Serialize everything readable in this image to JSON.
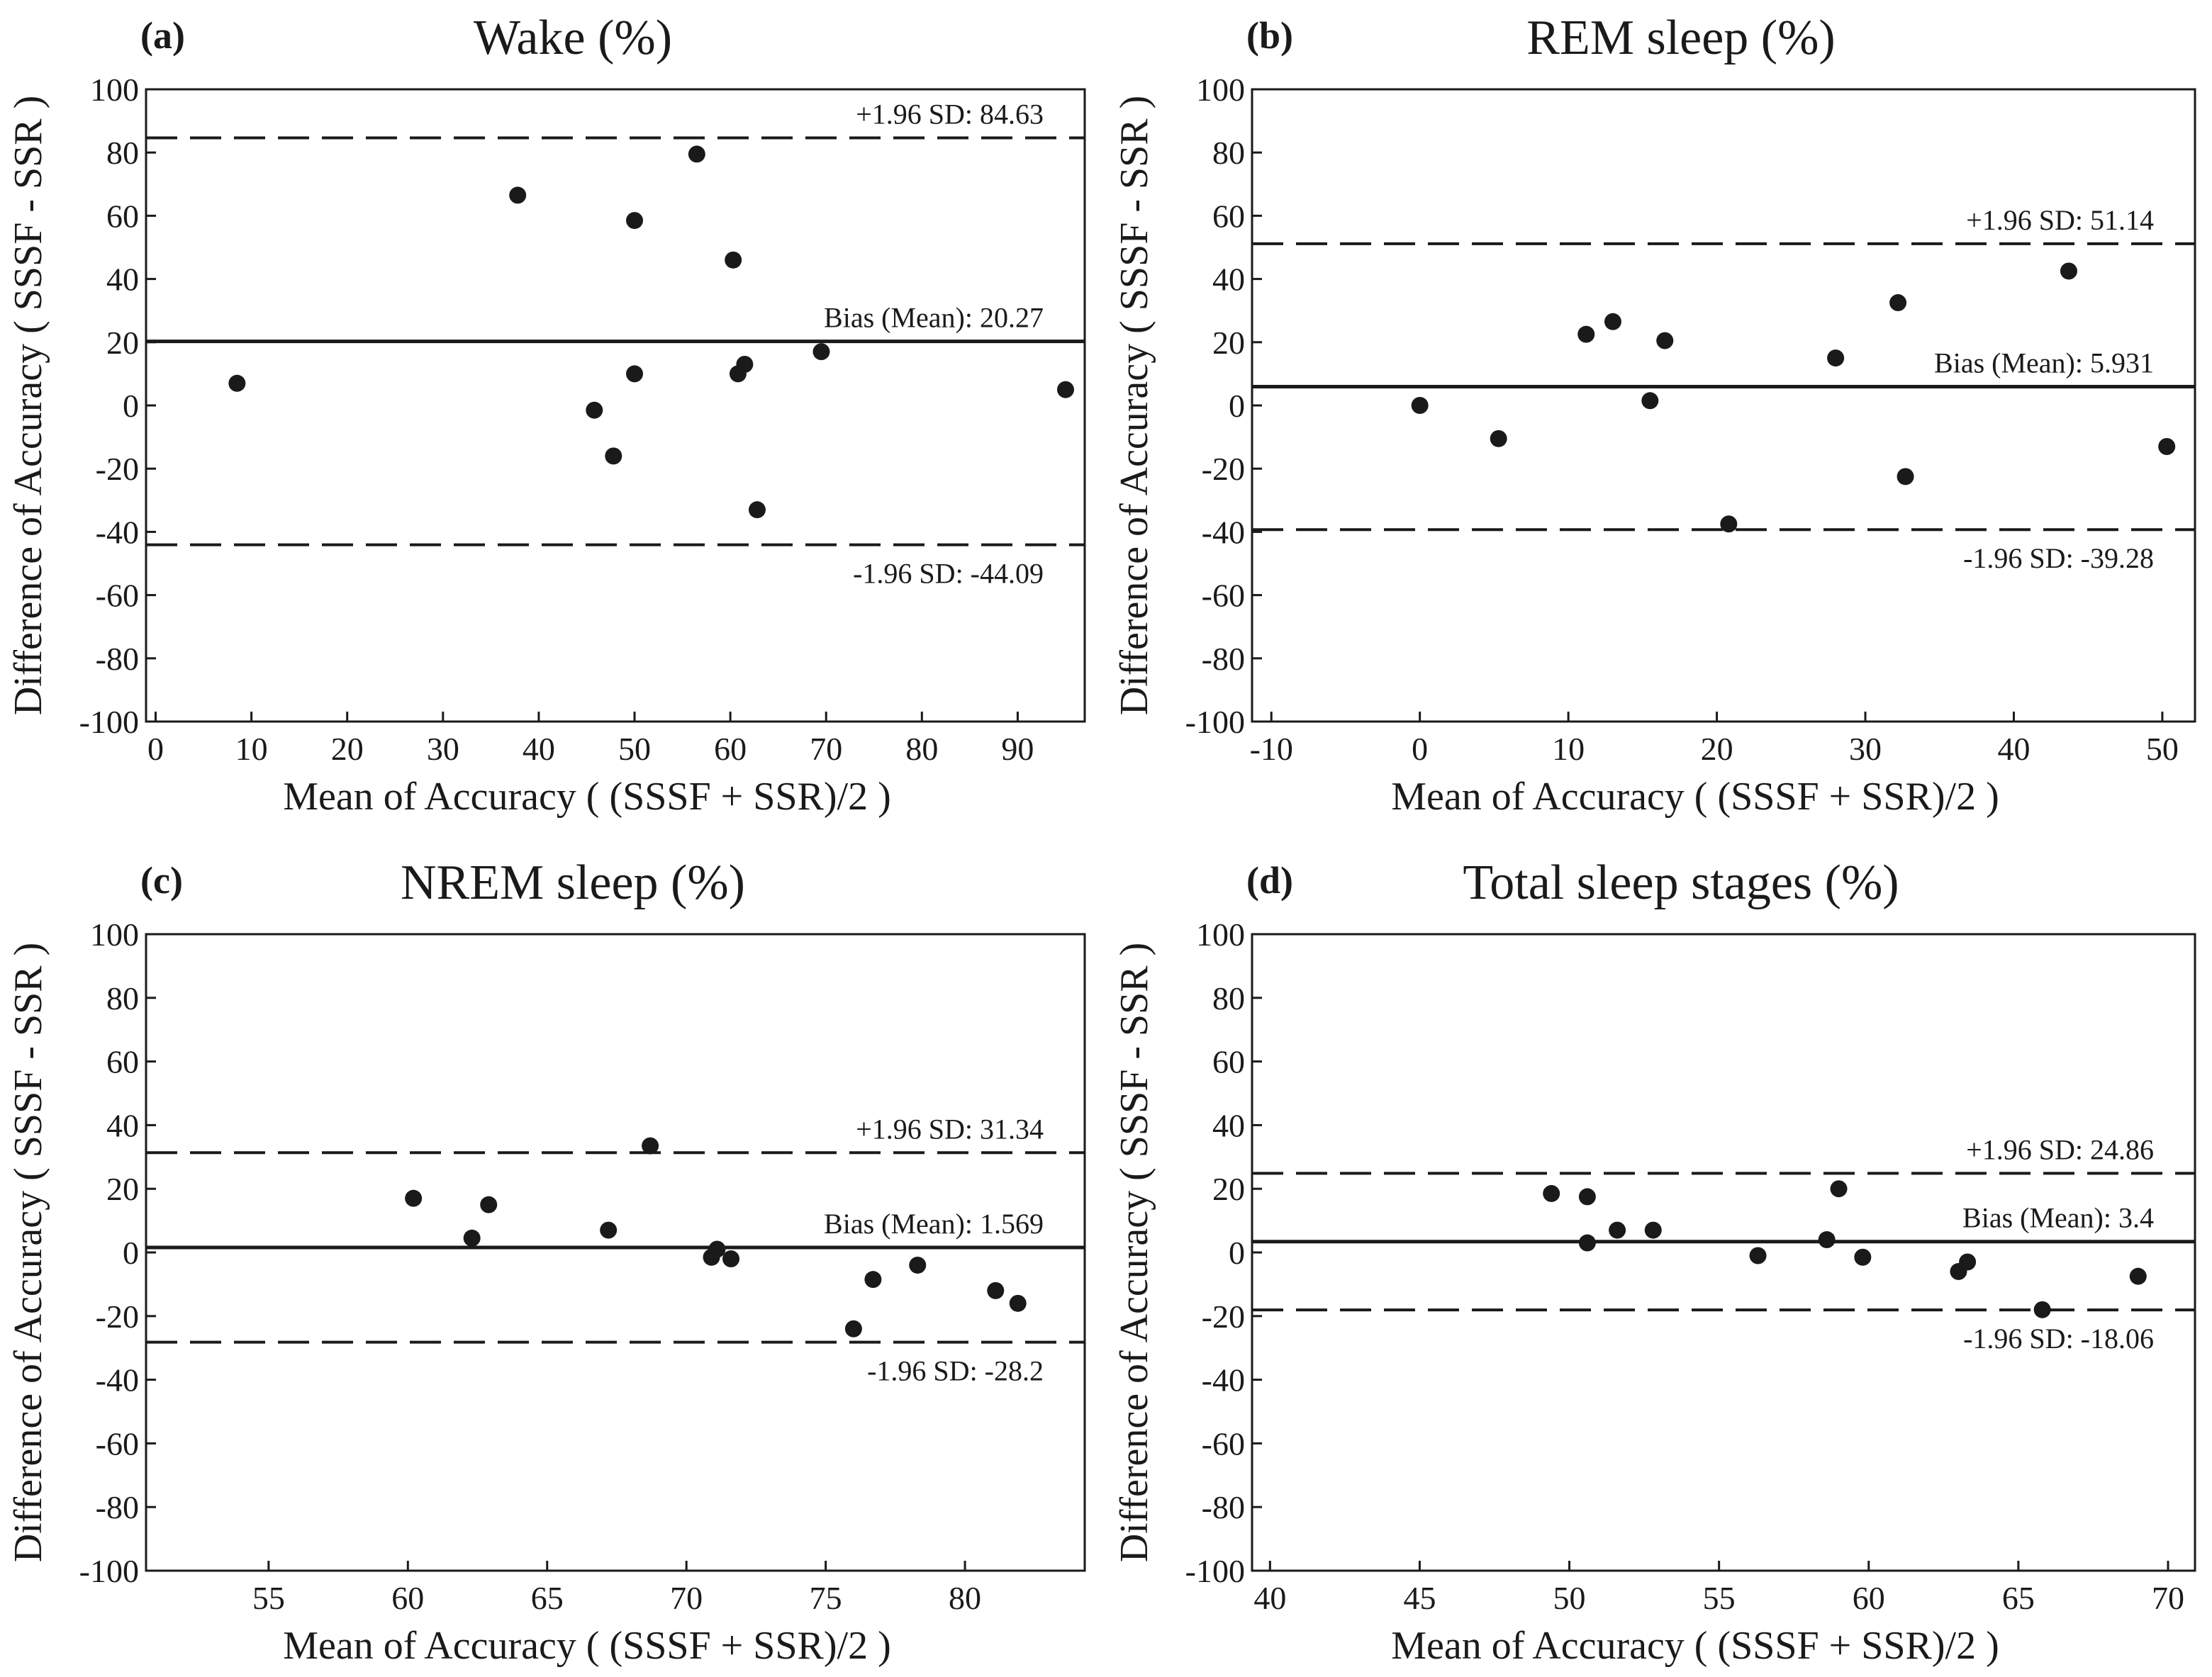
{
  "chart_data": [
    {
      "type": "scatter",
      "panel_label": "(a)",
      "title": "Wake (%)",
      "xlabel": "Mean of Accuracy ( (SSSF + SSR)/2 )",
      "ylabel": "Difference of Accuracy ( SSSF - SSR )",
      "xlim": [
        -1,
        97
      ],
      "ylim": [
        -100,
        100
      ],
      "xticks": [
        0,
        10,
        20,
        30,
        40,
        50,
        60,
        70,
        80,
        90
      ],
      "yticks": [
        100,
        80,
        60,
        40,
        20,
        0,
        -20,
        -40,
        -60,
        -80,
        -100
      ],
      "grid": false,
      "points": [
        {
          "x": 8.5,
          "y": 7
        },
        {
          "x": 37.8,
          "y": 66.5
        },
        {
          "x": 45.8,
          "y": -1.5
        },
        {
          "x": 47.8,
          "y": -16
        },
        {
          "x": 50,
          "y": 58.5
        },
        {
          "x": 50,
          "y": 10
        },
        {
          "x": 56.5,
          "y": 79.5
        },
        {
          "x": 60.3,
          "y": 46
        },
        {
          "x": 60.8,
          "y": 10
        },
        {
          "x": 61.5,
          "y": 13
        },
        {
          "x": 62.8,
          "y": -33
        },
        {
          "x": 69.5,
          "y": 17
        },
        {
          "x": 95,
          "y": 5
        }
      ],
      "lines": [
        {
          "name": "upper",
          "value": 84.63,
          "style": "dashed",
          "label": "+1.96 SD: 84.63",
          "label_side": "above"
        },
        {
          "name": "bias",
          "value": 20.27,
          "style": "solid",
          "label": "Bias (Mean): 20.27",
          "label_side": "above"
        },
        {
          "name": "lower",
          "value": -44.09,
          "style": "dashed",
          "label": "-1.96 SD: -44.09",
          "label_side": "below"
        }
      ]
    },
    {
      "type": "scatter",
      "panel_label": "(b)",
      "title": "REM sleep (%)",
      "xlabel": "Mean of Accuracy ( (SSSF + SSR)/2 )",
      "ylabel": "Difference of Accuracy ( SSSF - SSR )",
      "xlim": [
        -11.3,
        52.2
      ],
      "ylim": [
        -100,
        100
      ],
      "xticks": [
        -10,
        0,
        10,
        20,
        30,
        40,
        50
      ],
      "yticks": [
        100,
        80,
        60,
        40,
        20,
        0,
        -20,
        -40,
        -60,
        -80,
        -100
      ],
      "grid": false,
      "points": [
        {
          "x": 0,
          "y": 0
        },
        {
          "x": 5.3,
          "y": -10.5
        },
        {
          "x": 11.2,
          "y": 22.5
        },
        {
          "x": 13,
          "y": 26.5
        },
        {
          "x": 15.5,
          "y": 1.5
        },
        {
          "x": 16.5,
          "y": 20.5
        },
        {
          "x": 20.8,
          "y": -37.5
        },
        {
          "x": 28,
          "y": 15
        },
        {
          "x": 32.2,
          "y": 32.5
        },
        {
          "x": 32.7,
          "y": -22.5
        },
        {
          "x": 43.7,
          "y": 42.5
        },
        {
          "x": 50.3,
          "y": -13
        }
      ],
      "lines": [
        {
          "name": "upper",
          "value": 51.14,
          "style": "dashed",
          "label": "+1.96 SD: 51.14",
          "label_side": "above"
        },
        {
          "name": "bias",
          "value": 5.931,
          "style": "solid",
          "label": "Bias (Mean): 5.931",
          "label_side": "above"
        },
        {
          "name": "lower",
          "value": -39.28,
          "style": "dashed",
          "label": "-1.96 SD: -39.28",
          "label_side": "below"
        }
      ]
    },
    {
      "type": "scatter",
      "panel_label": "(c)",
      "title": "NREM sleep (%)",
      "xlabel": "Mean of Accuracy ( (SSSF + SSR)/2 )",
      "ylabel": "Difference of Accuracy ( SSSF - SSR )",
      "xlim": [
        50.6,
        84.3
      ],
      "ylim": [
        -100,
        100
      ],
      "xticks": [
        55,
        60,
        65,
        70,
        75,
        80
      ],
      "yticks": [
        100,
        80,
        60,
        40,
        20,
        0,
        -20,
        -40,
        -60,
        -80,
        -100
      ],
      "grid": false,
      "points": [
        {
          "x": 60.2,
          "y": 17
        },
        {
          "x": 62.3,
          "y": 4.5
        },
        {
          "x": 62.9,
          "y": 15
        },
        {
          "x": 67.2,
          "y": 7
        },
        {
          "x": 68.7,
          "y": 33.5
        },
        {
          "x": 70.9,
          "y": -1.5
        },
        {
          "x": 71.1,
          "y": 1
        },
        {
          "x": 71.6,
          "y": -2
        },
        {
          "x": 76,
          "y": -24
        },
        {
          "x": 76.7,
          "y": -8.5
        },
        {
          "x": 78.3,
          "y": -4
        },
        {
          "x": 81.1,
          "y": -12
        },
        {
          "x": 81.9,
          "y": -16
        }
      ],
      "lines": [
        {
          "name": "upper",
          "value": 31.34,
          "style": "dashed",
          "label": "+1.96 SD: 31.34",
          "label_side": "above"
        },
        {
          "name": "bias",
          "value": 1.569,
          "style": "solid",
          "label": "Bias (Mean): 1.569",
          "label_side": "above"
        },
        {
          "name": "lower",
          "value": -28.2,
          "style": "dashed",
          "label": "-1.96 SD: -28.2",
          "label_side": "below"
        }
      ]
    },
    {
      "type": "scatter",
      "panel_label": "(d)",
      "title": "Total sleep stages (%)",
      "xlabel": "Mean of Accuracy ( (SSSF + SSR)/2 )",
      "ylabel": "Difference of Accuracy ( SSSF - SSR )",
      "xlim": [
        39.4,
        70.9
      ],
      "ylim": [
        -100,
        100
      ],
      "xticks": [
        40,
        45,
        50,
        55,
        60,
        65,
        70
      ],
      "yticks": [
        100,
        80,
        60,
        40,
        20,
        0,
        -20,
        -40,
        -60,
        -80,
        -100
      ],
      "grid": false,
      "points": [
        {
          "x": 49.4,
          "y": 18.5
        },
        {
          "x": 50.6,
          "y": 17.5
        },
        {
          "x": 50.6,
          "y": 3
        },
        {
          "x": 51.6,
          "y": 7
        },
        {
          "x": 52.8,
          "y": 7
        },
        {
          "x": 56.3,
          "y": -1
        },
        {
          "x": 58.6,
          "y": 4
        },
        {
          "x": 59,
          "y": 20
        },
        {
          "x": 59.8,
          "y": -1.5
        },
        {
          "x": 63,
          "y": -6
        },
        {
          "x": 63.3,
          "y": -3
        },
        {
          "x": 65.8,
          "y": -18
        },
        {
          "x": 69,
          "y": -7.5
        }
      ],
      "lines": [
        {
          "name": "upper",
          "value": 24.86,
          "style": "dashed",
          "label": "+1.96 SD: 24.86",
          "label_side": "above"
        },
        {
          "name": "bias",
          "value": 3.4,
          "style": "solid",
          "label": "Bias (Mean): 3.4",
          "label_side": "above"
        },
        {
          "name": "lower",
          "value": -18.06,
          "style": "dashed",
          "label": "-1.96 SD: -18.06",
          "label_side": "below"
        }
      ]
    }
  ],
  "colors": {
    "ink": "#1a1a1a",
    "background": "#ffffff"
  }
}
